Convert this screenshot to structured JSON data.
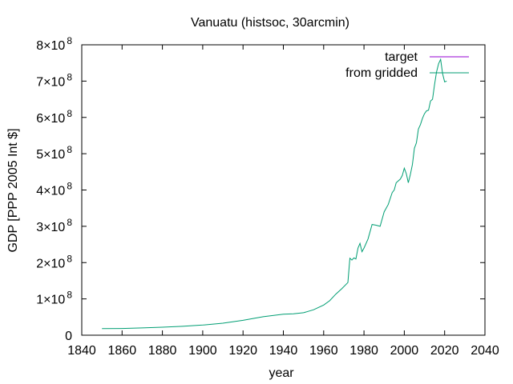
{
  "chart_data": {
    "type": "line",
    "title": "Vanuatu (histsoc, 30arcmin)",
    "xlabel": "year",
    "ylabel": "GDP [PPP 2005 Int $]",
    "xlim": [
      1840,
      2040
    ],
    "ylim": [
      0,
      800000000
    ],
    "xticks": [
      1840,
      1860,
      1880,
      1900,
      1920,
      1940,
      1960,
      1980,
      2000,
      2020,
      2040
    ],
    "xtick_labels": [
      "1840",
      "1860",
      "1880",
      "1900",
      "1920",
      "1940",
      "1960",
      "1980",
      "2000",
      "2020",
      "2040"
    ],
    "yticks": [
      0,
      100000000,
      200000000,
      300000000,
      400000000,
      500000000,
      600000000,
      700000000,
      800000000
    ],
    "ytick_labels": [
      {
        "base": "0",
        "exp": ""
      },
      {
        "base": "1×10",
        "exp": "8"
      },
      {
        "base": "2×10",
        "exp": "8"
      },
      {
        "base": "3×10",
        "exp": "8"
      },
      {
        "base": "4×10",
        "exp": "8"
      },
      {
        "base": "5×10",
        "exp": "8"
      },
      {
        "base": "6×10",
        "exp": "8"
      },
      {
        "base": "7×10",
        "exp": "8"
      },
      {
        "base": "8×10",
        "exp": "8"
      }
    ],
    "legend_position": "top-right",
    "grid": false,
    "series": [
      {
        "name": "target",
        "color": "#9400D3",
        "x": [],
        "y": []
      },
      {
        "name": "from gridded",
        "color": "#009E73",
        "x": [
          1850,
          1860,
          1870,
          1880,
          1890,
          1900,
          1910,
          1920,
          1930,
          1940,
          1945,
          1950,
          1955,
          1960,
          1963,
          1966,
          1969,
          1972,
          1973,
          1974,
          1975,
          1976,
          1977,
          1978,
          1979,
          1980,
          1982,
          1984,
          1986,
          1988,
          1990,
          1992,
          1994,
          1995,
          1996,
          1998,
          1999,
          2000,
          2001,
          2002,
          2003,
          2004,
          2005,
          2006,
          2007,
          2008,
          2009,
          2010,
          2011,
          2012,
          2013,
          2014,
          2015,
          2016,
          2017,
          2018,
          2019,
          2020,
          2021
        ],
        "y": [
          18000000,
          18500000,
          20000000,
          22000000,
          24500000,
          28000000,
          33000000,
          41000000,
          51000000,
          58000000,
          59000000,
          62000000,
          70000000,
          83000000,
          95000000,
          113000000,
          128000000,
          145000000,
          212000000,
          207000000,
          213000000,
          210000000,
          240000000,
          253000000,
          230000000,
          240000000,
          265000000,
          305000000,
          303000000,
          300000000,
          340000000,
          360000000,
          393000000,
          400000000,
          420000000,
          430000000,
          440000000,
          460000000,
          445000000,
          420000000,
          442000000,
          470000000,
          515000000,
          530000000,
          568000000,
          580000000,
          597000000,
          610000000,
          618000000,
          620000000,
          645000000,
          650000000,
          690000000,
          725000000,
          748000000,
          760000000,
          720000000,
          698000000,
          700000000
        ]
      }
    ]
  }
}
